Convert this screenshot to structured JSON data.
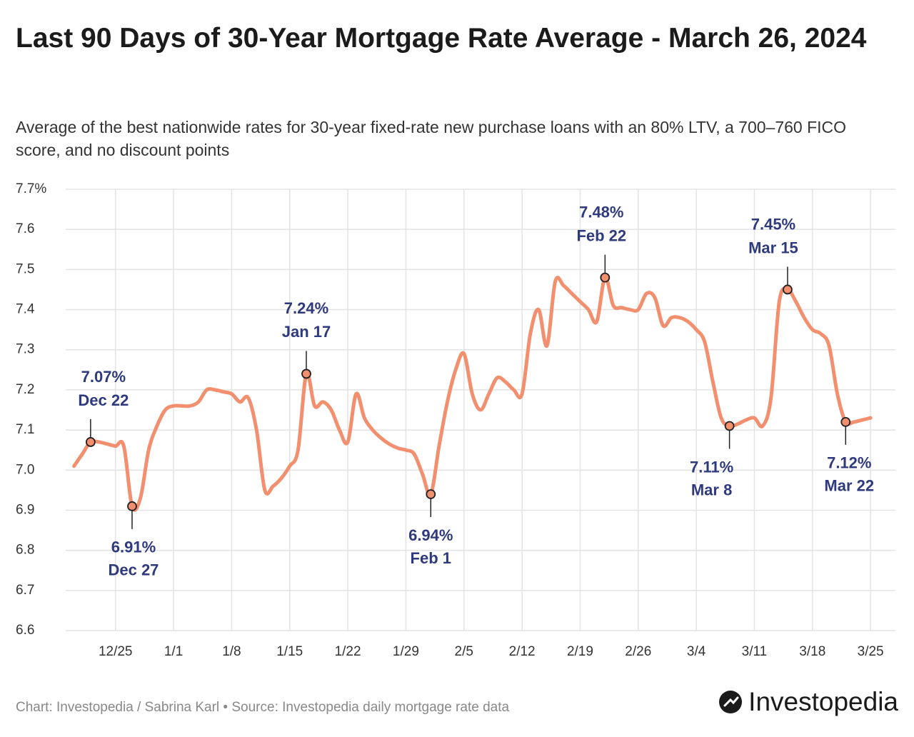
{
  "chart_data": {
    "type": "line",
    "title": "Last 90 Days of 30-Year Mortgage Rate Average - March 26, 2024",
    "subtitle": "Average of the best nationwide rates for 30-year fixed-rate new purchase loans with an 80% LTV, a 700–760 FICO score, and no discount points",
    "source": "Chart: Investopedia / Sabrina Karl • Source: Investopedia daily mortgage rate data",
    "logo": "Investopedia",
    "x": [
      "12/20",
      "12/21",
      "12/22",
      "12/23",
      "12/24",
      "12/25",
      "12/26",
      "12/27",
      "12/28",
      "12/29",
      "12/30",
      "12/31",
      "1/1",
      "1/2",
      "1/3",
      "1/4",
      "1/5",
      "1/6",
      "1/7",
      "1/8",
      "1/9",
      "1/10",
      "1/11",
      "1/12",
      "1/13",
      "1/14",
      "1/15",
      "1/16",
      "1/17",
      "1/18",
      "1/19",
      "1/20",
      "1/21",
      "1/22",
      "1/23",
      "1/24",
      "1/25",
      "1/26",
      "1/27",
      "1/28",
      "1/29",
      "1/30",
      "1/31",
      "2/1",
      "2/2",
      "2/3",
      "2/4",
      "2/5",
      "2/6",
      "2/7",
      "2/8",
      "2/9",
      "2/10",
      "2/11",
      "2/12",
      "2/13",
      "2/14",
      "2/15",
      "2/16",
      "2/17",
      "2/18",
      "2/19",
      "2/20",
      "2/21",
      "2/22",
      "2/23",
      "2/24",
      "2/25",
      "2/26",
      "2/27",
      "2/28",
      "2/29",
      "3/1",
      "3/2",
      "3/3",
      "3/4",
      "3/5",
      "3/6",
      "3/7",
      "3/8",
      "3/9",
      "3/10",
      "3/11",
      "3/12",
      "3/13",
      "3/14",
      "3/15",
      "3/16",
      "3/17",
      "3/18",
      "3/19",
      "3/20",
      "3/21",
      "3/22",
      "3/23",
      "3/24",
      "3/25"
    ],
    "series": [
      {
        "name": "30-Year Mortgage Rate Average",
        "color": "#f28f6f",
        "values": [
          7.01,
          7.04,
          7.07,
          7.07,
          7.065,
          7.06,
          7.06,
          6.91,
          6.93,
          7.05,
          7.11,
          7.15,
          7.16,
          7.16,
          7.16,
          7.17,
          7.2,
          7.2,
          7.195,
          7.19,
          7.17,
          7.18,
          7.1,
          6.95,
          6.96,
          6.98,
          7.01,
          7.05,
          7.24,
          7.16,
          7.17,
          7.15,
          7.1,
          7.07,
          7.19,
          7.13,
          7.1,
          7.08,
          7.065,
          7.055,
          7.05,
          7.04,
          6.99,
          6.94,
          7.06,
          7.17,
          7.25,
          7.29,
          7.19,
          7.15,
          7.19,
          7.23,
          7.22,
          7.2,
          7.19,
          7.34,
          7.4,
          7.31,
          7.47,
          7.46,
          7.44,
          7.42,
          7.4,
          7.37,
          7.48,
          7.41,
          7.405,
          7.4,
          7.4,
          7.44,
          7.43,
          7.36,
          7.38,
          7.38,
          7.37,
          7.35,
          7.32,
          7.22,
          7.13,
          7.11,
          7.115,
          7.125,
          7.13,
          7.11,
          7.18,
          7.42,
          7.45,
          7.42,
          7.38,
          7.35,
          7.34,
          7.31,
          7.19,
          7.12,
          7.12,
          7.125,
          7.13
        ]
      }
    ],
    "xlim": [
      "12/19",
      "3/28"
    ],
    "xticks": [
      "12/25",
      "1/1",
      "1/8",
      "1/15",
      "1/22",
      "1/29",
      "2/5",
      "2/12",
      "2/19",
      "2/26",
      "3/4",
      "3/11",
      "3/18",
      "3/25"
    ],
    "ylim": [
      6.6,
      7.7
    ],
    "yticks": [
      6.6,
      6.7,
      6.8,
      6.9,
      {
        "value": 7,
        "label": "7.0"
      },
      7.1,
      7.2,
      7.3,
      7.4,
      7.5,
      7.6,
      {
        "value": 7.7,
        "label": "7.7%"
      }
    ],
    "grid": true,
    "annotations": [
      {
        "x": "12/22",
        "value": 7.07,
        "label": "7.07%",
        "date": "Dec 22",
        "position": "above"
      },
      {
        "x": "12/27",
        "value": 6.91,
        "label": "6.91%",
        "date": "Dec 27",
        "position": "below"
      },
      {
        "x": "1/17",
        "value": 7.24,
        "label": "7.24%",
        "date": "Jan 17",
        "position": "above"
      },
      {
        "x": "2/1",
        "value": 6.94,
        "label": "6.94%",
        "date": "Feb 1",
        "position": "below"
      },
      {
        "x": "2/22",
        "value": 7.48,
        "label": "7.48%",
        "date": "Feb 22",
        "position": "above"
      },
      {
        "x": "3/8",
        "value": 7.11,
        "label": "7.11%",
        "date": "Mar 8",
        "position": "below"
      },
      {
        "x": "3/15",
        "value": 7.45,
        "label": "7.45%",
        "date": "Mar 15",
        "position": "above"
      },
      {
        "x": "3/22",
        "value": 7.12,
        "label": "7.12%",
        "date": "Mar 22",
        "position": "below"
      }
    ]
  }
}
